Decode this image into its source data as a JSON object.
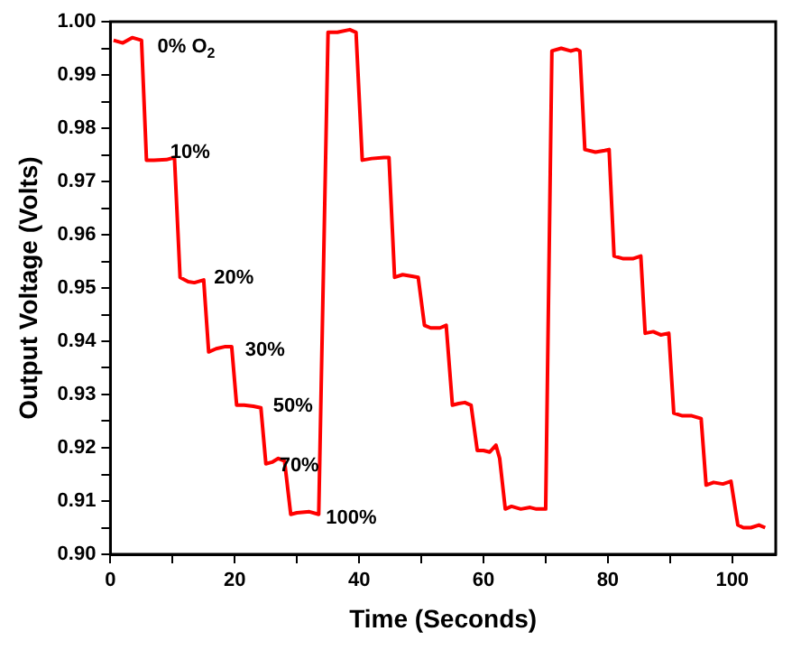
{
  "chart_data": {
    "type": "line",
    "xlabel": "Time (Seconds)",
    "ylabel": "Output Voltage (Volts)",
    "x": [
      0.5,
      2,
      3.5,
      5,
      5.8,
      7,
      9,
      10.3,
      11.2,
      12.5,
      13.5,
      15,
      15.8,
      17,
      18.5,
      19.5,
      20.3,
      21.5,
      23,
      24.2,
      25,
      26,
      27,
      28,
      29,
      30,
      32,
      33.5,
      35,
      36.5,
      38.5,
      39.5,
      40.5,
      42,
      44,
      44.8,
      45.7,
      47,
      48.5,
      49.5,
      50.5,
      51.5,
      53,
      54,
      55,
      56,
      57,
      58,
      59,
      60,
      61,
      62,
      62.6,
      63.5,
      64.5,
      66,
      67.5,
      68.5,
      70,
      71,
      72.5,
      74,
      75,
      75.5,
      76.3,
      78,
      79.5,
      80.2,
      81,
      82.5,
      84,
      85.3,
      86,
      87.3,
      88.5,
      89.8,
      90.6,
      92,
      93.5,
      95,
      95.8,
      97,
      98.5,
      99.8,
      100.9,
      101.8,
      103,
      104.3,
      105.3
    ],
    "series": [
      {
        "color": "#ff0000",
        "values": [
          0.9965,
          0.996,
          0.997,
          0.9965,
          0.974,
          0.974,
          0.9741,
          0.9745,
          0.952,
          0.9512,
          0.951,
          0.9515,
          0.938,
          0.9386,
          0.939,
          0.939,
          0.928,
          0.928,
          0.9278,
          0.9275,
          0.917,
          0.9173,
          0.918,
          0.9175,
          0.9075,
          0.9078,
          0.908,
          0.9075,
          0.998,
          0.998,
          0.9985,
          0.998,
          0.974,
          0.9743,
          0.9745,
          0.9745,
          0.952,
          0.9525,
          0.9522,
          0.952,
          0.943,
          0.9425,
          0.9425,
          0.943,
          0.928,
          0.9283,
          0.9285,
          0.928,
          0.9195,
          0.9195,
          0.9192,
          0.9205,
          0.918,
          0.9085,
          0.909,
          0.9085,
          0.9088,
          0.9085,
          0.9085,
          0.9945,
          0.995,
          0.9945,
          0.9948,
          0.9945,
          0.976,
          0.9755,
          0.9758,
          0.976,
          0.956,
          0.9555,
          0.9555,
          0.956,
          0.9415,
          0.9418,
          0.9412,
          0.9415,
          0.9265,
          0.926,
          0.926,
          0.9255,
          0.913,
          0.9135,
          0.9132,
          0.9137,
          0.9055,
          0.905,
          0.905,
          0.9055,
          0.905
        ]
      }
    ],
    "xlim": [
      0,
      107
    ],
    "xticks": [
      0,
      {
        "value": 10,
        "label": null
      },
      20,
      {
        "value": 30,
        "label": null
      },
      40,
      {
        "value": 50,
        "label": null
      },
      60,
      {
        "value": 70,
        "label": null
      },
      80,
      {
        "value": 90,
        "label": null
      },
      100
    ],
    "ylim": [
      0.9,
      1.0
    ],
    "yticks": [
      {
        "value": 0.9,
        "label": "0.90"
      },
      {
        "value": 0.905,
        "label": null
      },
      {
        "value": 0.91,
        "label": "0.91"
      },
      {
        "value": 0.915,
        "label": null
      },
      {
        "value": 0.92,
        "label": "0.92"
      },
      {
        "value": 0.925,
        "label": null
      },
      {
        "value": 0.93,
        "label": "0.93"
      },
      {
        "value": 0.935,
        "label": null
      },
      {
        "value": 0.94,
        "label": "0.94"
      },
      {
        "value": 0.945,
        "label": null
      },
      {
        "value": 0.95,
        "label": "0.95"
      },
      {
        "value": 0.955,
        "label": null
      },
      {
        "value": 0.96,
        "label": "0.96"
      },
      {
        "value": 0.965,
        "label": null
      },
      {
        "value": 0.97,
        "label": "0.97"
      },
      {
        "value": 0.975,
        "label": null
      },
      {
        "value": 0.98,
        "label": "0.98"
      },
      {
        "value": 0.985,
        "label": null
      },
      {
        "value": 0.99,
        "label": "0.99"
      },
      {
        "value": 0.995,
        "label": null
      },
      {
        "value": 1.0,
        "label": "1.00"
      }
    ],
    "grid": false,
    "legend": false,
    "marker": "none",
    "line_style": "solid",
    "annotations": [
      {
        "text": "0% O$_{2}$",
        "x": 6.4,
        "y": 0.996
      },
      "10%",
      {
        "text": "20%",
        "x": 15.5,
        "y": 0.9525
      },
      {
        "text": "30%",
        "x": 20.5,
        "y": 0.939
      },
      {
        "text": "50%",
        "x": 25,
        "y": 0.9285
      },
      {
        "text": "70%",
        "x": 26,
        "y": 0.9173
      },
      {
        "text": "100%",
        "x": 33.5,
        "y": 0.9075
      }
    ]
  }
}
